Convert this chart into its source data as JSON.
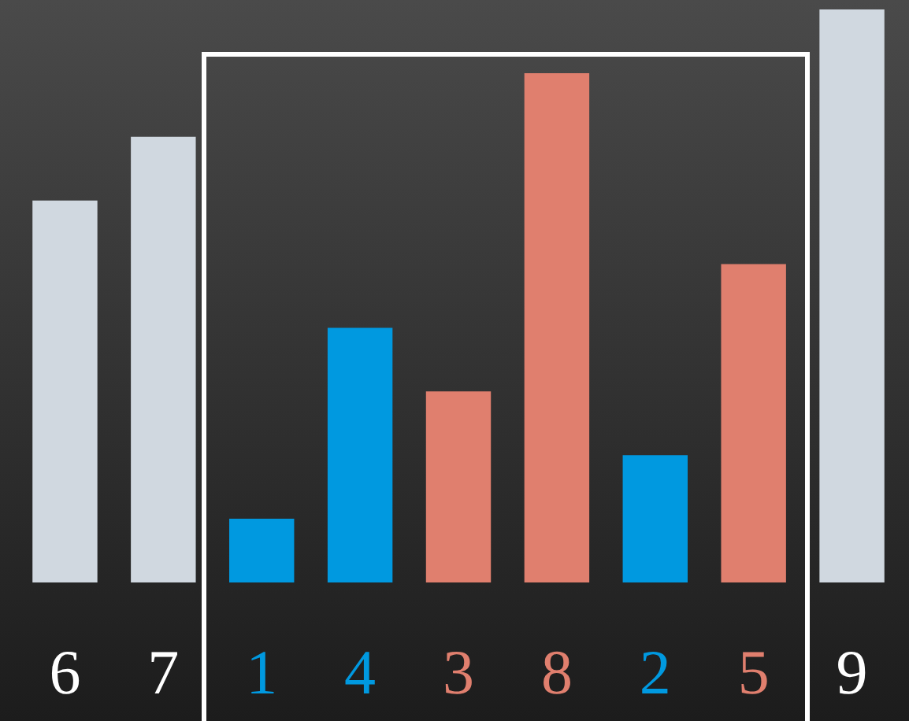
{
  "chart_data": {
    "type": "bar",
    "categories": [
      null,
      null,
      null,
      null,
      null,
      null,
      null,
      null,
      null
    ],
    "values": [
      6,
      7,
      1,
      4,
      3,
      8,
      2,
      5,
      9
    ],
    "colors": [
      "#d0d8e0",
      "#d0d8e0",
      "#0099e0",
      "#0099e0",
      "#e07f6e",
      "#e07f6e",
      "#0099e0",
      "#e07f6e",
      "#d0d8e0"
    ],
    "data_labels": true
  }
}
